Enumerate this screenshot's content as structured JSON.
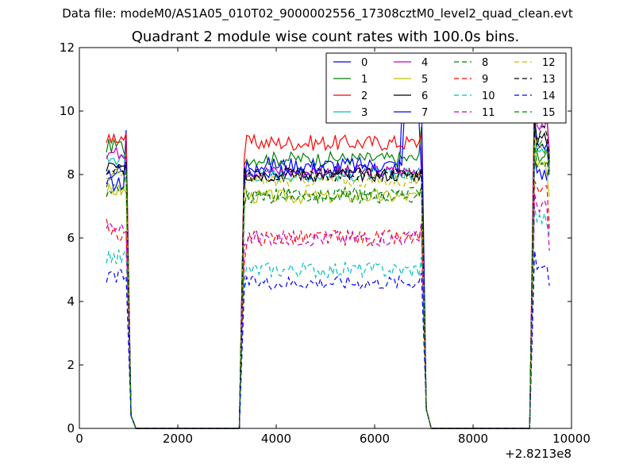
{
  "suptitle": "Data file: modeM0/AS1A05_010T02_9000002556_17308cztM0_level2_quad_clean.evt",
  "chart_data": {
    "type": "line",
    "title": "Quadrant 2 module wise count rates with 100.0s bins.",
    "xlabel": "",
    "ylabel": "",
    "xlim": [
      0,
      10000
    ],
    "ylim": [
      0,
      12
    ],
    "x_offset_label": "+2.8213e8",
    "xticks": [
      0,
      2000,
      4000,
      6000,
      8000,
      10000
    ],
    "xtick_labels": [
      "0",
      "2000",
      "4000",
      "6000",
      "8000",
      "10000"
    ],
    "yticks": [
      0,
      2,
      4,
      6,
      8,
      10,
      12
    ],
    "ytick_labels": [
      "0",
      "2",
      "4",
      "6",
      "8",
      "10",
      "12"
    ],
    "grid": false,
    "legend_position": "top-right",
    "legend_columns": 4,
    "segments": [
      {
        "x_start": 550,
        "x_end": 950
      },
      {
        "x_start": 3350,
        "x_end": 6950
      },
      {
        "x_start": 9250,
        "x_end": 9550
      }
    ],
    "off_ranges": [
      [
        1150,
        3250
      ],
      [
        7150,
        9150
      ]
    ],
    "series": [
      {
        "name": "0",
        "color": "#0000ff",
        "dash": "solid",
        "levels": [
          7.7,
          8.1,
          8.0
        ],
        "seg_start": [
          7.7,
          7.9,
          8.5
        ],
        "seg_end": [
          9.4,
          8.1,
          8.4
        ],
        "noise": 0.25,
        "feature": "peak 9.9 at 800; rises to 10.0 near 6600-6900"
      },
      {
        "name": "1",
        "color": "#008000",
        "dash": "solid",
        "levels": [
          8.9,
          8.5,
          8.6
        ],
        "seg_start": [
          8.7,
          8.3,
          9.7
        ],
        "seg_end": [
          8.5,
          9.5,
          8.0
        ],
        "noise": 0.22
      },
      {
        "name": "2",
        "color": "#ff0000",
        "dash": "solid",
        "levels": [
          9.2,
          9.0,
          10.0
        ],
        "seg_start": [
          9.0,
          8.5,
          11.0
        ],
        "seg_end": [
          9.3,
          9.3,
          8.7
        ],
        "noise": 0.25
      },
      {
        "name": "3",
        "color": "#00bfbf",
        "dash": "solid",
        "levels": [
          8.5,
          8.0,
          8.9
        ],
        "seg_start": [
          8.6,
          7.8,
          9.4
        ],
        "seg_end": [
          8.3,
          7.9,
          8.2
        ],
        "noise": 0.22
      },
      {
        "name": "4",
        "color": "#bf00bf",
        "dash": "solid",
        "levels": [
          8.7,
          8.1,
          9.6
        ],
        "seg_start": [
          8.5,
          8.3,
          10.4
        ],
        "seg_end": [
          8.5,
          8.2,
          8.6
        ],
        "noise": 0.2
      },
      {
        "name": "5",
        "color": "#bfbf00",
        "dash": "solid",
        "levels": [
          7.5,
          7.3,
          8.2
        ],
        "seg_start": [
          7.3,
          7.9,
          9.0
        ],
        "seg_end": [
          7.4,
          7.6,
          7.3
        ],
        "noise": 0.22
      },
      {
        "name": "6",
        "color": "#000000",
        "dash": "solid",
        "levels": [
          8.4,
          8.0,
          9.1
        ],
        "seg_start": [
          8.1,
          8.2,
          9.7
        ],
        "seg_end": [
          8.3,
          8.1,
          8.4
        ],
        "noise": 0.22
      },
      {
        "name": "7",
        "color": "#0000ff",
        "dash": "solid",
        "levels": [
          8.1,
          8.3,
          9.0
        ],
        "seg_start": [
          8.0,
          7.6,
          9.8
        ],
        "seg_end": [
          8.3,
          10.5,
          8.1
        ],
        "noise": 0.25
      },
      {
        "name": "8",
        "color": "#008000",
        "dash": "dashed",
        "levels": [
          7.9,
          7.3,
          8.9
        ],
        "seg_start": [
          7.6,
          6.9,
          9.5
        ],
        "seg_end": [
          8.0,
          7.6,
          8.2
        ],
        "noise": 0.22
      },
      {
        "name": "9",
        "color": "#ff0000",
        "dash": "dashed",
        "levels": [
          6.1,
          6.0,
          7.4
        ],
        "seg_start": [
          6.6,
          5.2,
          7.8
        ],
        "seg_end": [
          6.2,
          6.3,
          6.3
        ],
        "noise": 0.25
      },
      {
        "name": "10",
        "color": "#00bfbf",
        "dash": "dashed",
        "levels": [
          5.4,
          5.0,
          6.6
        ],
        "seg_start": [
          5.2,
          4.6,
          7.0
        ],
        "seg_end": [
          5.6,
          5.4,
          6.1
        ],
        "noise": 0.25
      },
      {
        "name": "11",
        "color": "#bf00bf",
        "dash": "dashed",
        "levels": [
          6.3,
          6.0,
          7.0
        ],
        "seg_start": [
          6.3,
          5.8,
          7.4
        ],
        "seg_end": [
          6.2,
          6.5,
          5.6
        ],
        "noise": 0.25
      },
      {
        "name": "12",
        "color": "#bfbf00",
        "dash": "dashed",
        "levels": [
          8.0,
          7.8,
          8.8
        ],
        "seg_start": [
          7.9,
          7.5,
          9.2
        ],
        "seg_end": [
          8.1,
          8.0,
          8.0
        ],
        "noise": 0.2
      },
      {
        "name": "13",
        "color": "#000000",
        "dash": "dashed",
        "levels": [
          8.2,
          8.0,
          9.3
        ],
        "seg_start": [
          8.0,
          7.8,
          9.7
        ],
        "seg_end": [
          8.4,
          8.2,
          8.5
        ],
        "noise": 0.22
      },
      {
        "name": "14",
        "color": "#0000ff",
        "dash": "dashed",
        "levels": [
          4.8,
          4.6,
          5.2
        ],
        "seg_start": [
          4.6,
          4.4,
          5.6
        ],
        "seg_end": [
          4.8,
          4.9,
          4.5
        ],
        "noise": 0.22
      },
      {
        "name": "15",
        "color": "#008000",
        "dash": "dashed",
        "levels": [
          7.5,
          7.4,
          8.4
        ],
        "seg_start": [
          7.3,
          7.0,
          9.0
        ],
        "seg_end": [
          8.2,
          7.6,
          7.9
        ],
        "noise": 0.2
      }
    ]
  }
}
